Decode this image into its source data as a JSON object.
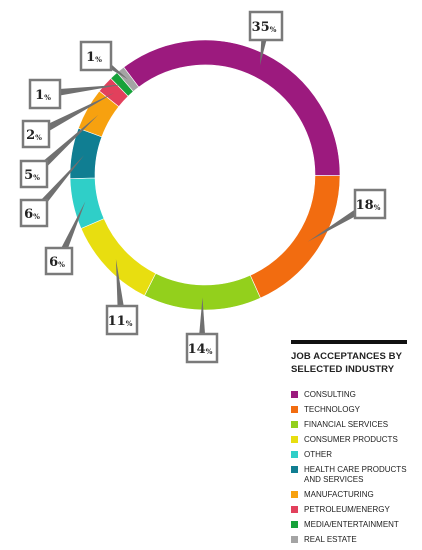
{
  "chart_data": {
    "type": "pie",
    "donut": true,
    "title": "JOB ACCEPTANCES BY SELECTED INDUSTRY",
    "unit_suffix": "%",
    "slices": [
      {
        "name": "CONSULTING",
        "value": 35,
        "color": "#9c1a7e"
      },
      {
        "name": "TECHNOLOGY",
        "value": 18,
        "color": "#f26c10"
      },
      {
        "name": "FINANCIAL SERVICES",
        "value": 14,
        "color": "#93d01c"
      },
      {
        "name": "CONSUMER PRODUCTS",
        "value": 11,
        "color": "#e8de10"
      },
      {
        "name": "OTHER",
        "value": 6,
        "color": "#2fcfc8"
      },
      {
        "name": "HEALTH CARE PRODUCTS\nAND SERVICES",
        "value": 6,
        "color": "#107e92"
      },
      {
        "name": "MANUFACTURING",
        "value": 5,
        "color": "#f7a10f"
      },
      {
        "name": "PETROLEUM/ENERGY",
        "value": 2,
        "color": "#e2405c"
      },
      {
        "name": "MEDIA/ENTERTAINMENT",
        "value": 1,
        "color": "#17a23a"
      },
      {
        "name": "REAL ESTATE",
        "value": 1,
        "color": "#a4a4a4"
      }
    ],
    "legend_position": "bottom-right"
  }
}
